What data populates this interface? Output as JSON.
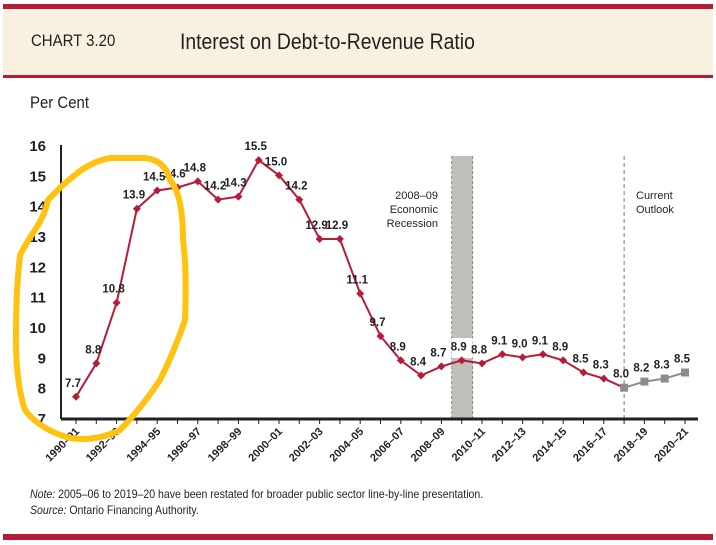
{
  "header": {
    "chart_number": "CHART 3.20",
    "title": "Interest on Debt-to-Revenue Ratio"
  },
  "colors": {
    "brand_red": "#b71c36",
    "header_bg": "#f8f1e0",
    "actual_series": "#b71c36",
    "outlook_series": "#8c8c8c",
    "recession_band": "#c0bfbb",
    "highlight_annotation": "#ffc20e"
  },
  "chart_data": {
    "type": "line",
    "title": "Interest on Debt-to-Revenue Ratio",
    "ylabel": "Per Cent",
    "ylim": [
      7,
      16
    ],
    "yticks": [
      7,
      8,
      9,
      10,
      11,
      12,
      13,
      14,
      15,
      16
    ],
    "x": [
      "1990–91",
      "1991–92",
      "1992–93",
      "1993–94",
      "1994–95",
      "1995–96",
      "1996–97",
      "1997–98",
      "1998–99",
      "1999–2000",
      "2000–01",
      "2001–02",
      "2002–03",
      "2003–04",
      "2004–05",
      "2005–06",
      "2006–07",
      "2007–08",
      "2008–09",
      "2009–10",
      "2010–11",
      "2011–12",
      "2012–13",
      "2013–14",
      "2014–15",
      "2015–16",
      "2016–17",
      "2017–18",
      "2018–19",
      "2019–20",
      "2020–21"
    ],
    "xtick_labels": [
      "1990–91",
      "1992–93",
      "1994–95",
      "1996–97",
      "1998–99",
      "2000–01",
      "2002–03",
      "2004–05",
      "2006–07",
      "2008–09",
      "2010–11",
      "2012–13",
      "2014–15",
      "2016–17",
      "2018–19",
      "2020–21"
    ],
    "values": [
      7.7,
      8.8,
      10.8,
      13.9,
      14.5,
      14.6,
      14.8,
      14.2,
      14.3,
      15.5,
      15.0,
      14.2,
      12.9,
      12.9,
      11.1,
      9.7,
      8.9,
      8.4,
      8.7,
      8.9,
      8.8,
      9.1,
      9.0,
      9.1,
      8.9,
      8.5,
      8.3,
      8.0,
      8.2,
      8.3,
      8.5
    ],
    "value_labels": [
      "7.7",
      "8.8",
      "10.8",
      "13.9",
      "14.5",
      "14.6",
      "14.8",
      "14.2",
      "14.3",
      "15.5",
      "15.0",
      "14.2",
      "12.9",
      "12.9",
      "11.1",
      "9.7",
      "8.9",
      "8.4",
      "8.7",
      "8.9",
      "8.8",
      "9.1",
      "9.0",
      "9.1",
      "8.9",
      "8.5",
      "8.3",
      "8.0",
      "8.2",
      "8.3",
      "8.5"
    ],
    "outlook_start": "2017–18",
    "annotations": {
      "recession": [
        "2008–09",
        "Economic",
        "Recession"
      ],
      "outlook": [
        "Current",
        "Outlook"
      ]
    },
    "grid": false
  },
  "footer": {
    "note_label": "Note:",
    "note_text": " 2005–06 to 2019–20 have been restated for broader public sector line-by-line presentation.",
    "source_label": "Source:",
    "source_text": " Ontario Financing Authority."
  }
}
